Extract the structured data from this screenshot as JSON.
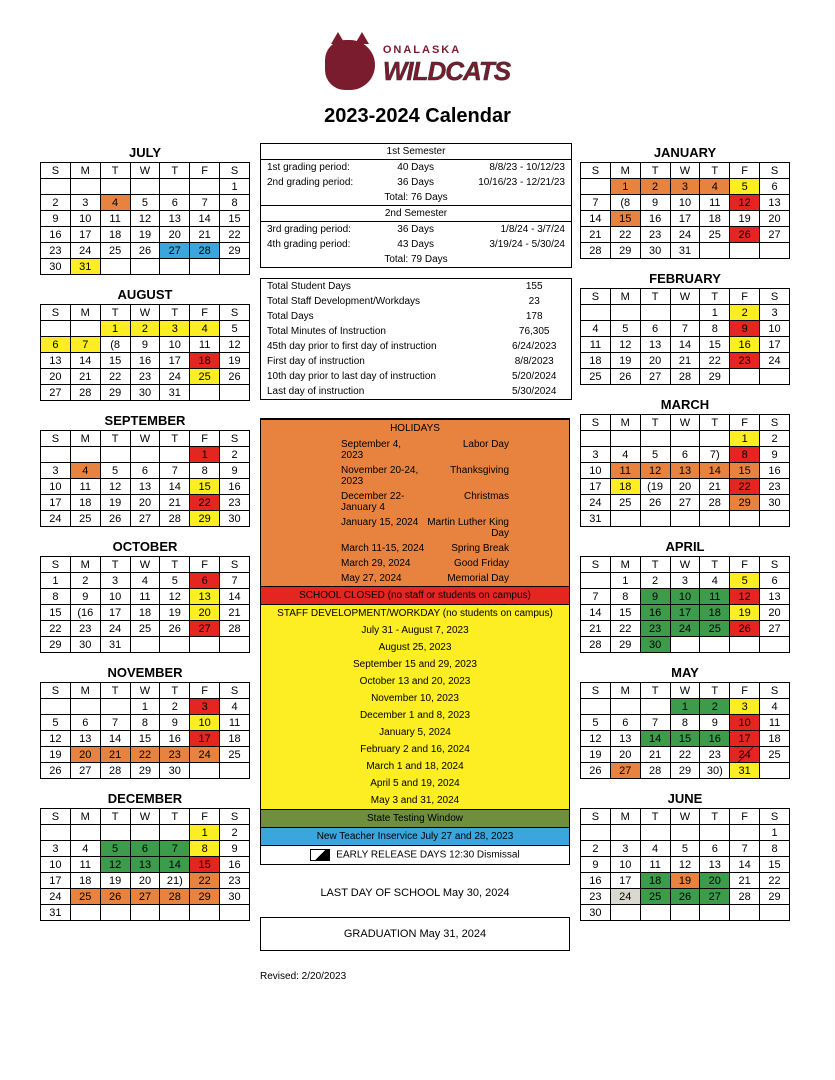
{
  "brand_top": "ONALASKA",
  "brand_main": "WILDCATS",
  "title": "2023-2024 Calendar",
  "dow": [
    "S",
    "M",
    "T",
    "W",
    "T",
    "F",
    "S"
  ],
  "colors": {
    "orange": "#e8833f",
    "red": "#e52620",
    "yellow": "#fcee23",
    "blue": "#3aa6dd",
    "green": "#3d9b4c",
    "olive": "#6f8f3e",
    "grey": "#d9d9cf"
  },
  "sem1": {
    "header": "1st Semester",
    "r1": [
      "1st grading period:",
      "40 Days",
      "8/8/23 - 10/12/23"
    ],
    "r2": [
      "2nd grading period:",
      "36 Days",
      "10/16/23 - 12/21/23"
    ],
    "total": "Total: 76 Days"
  },
  "sem2": {
    "header": "2nd Semester",
    "r1": [
      "3rd grading period:",
      "36 Days",
      "1/8/24 - 3/7/24"
    ],
    "r2": [
      "4th grading period:",
      "43 Days",
      "3/19/24 - 5/30/24"
    ],
    "total": "Total: 79 Days"
  },
  "stats": [
    [
      "Total Student Days",
      "155"
    ],
    [
      "Total Staff Development/Workdays",
      "23"
    ],
    [
      "Total Days",
      "178"
    ],
    [
      "Total Minutes of Instruction",
      "76,305"
    ],
    [
      "45th day prior to first day of instruction",
      "6/24/2023"
    ],
    [
      "First day of instruction",
      "8/8/2023"
    ],
    [
      "10th day prior to last day of instruction",
      "5/20/2024"
    ],
    [
      "Last day of instruction",
      "5/30/2024"
    ]
  ],
  "holidays_header": "HOLIDAYS",
  "holidays": [
    [
      "September 4, 2023",
      "Labor Day"
    ],
    [
      "November 20-24, 2023",
      "Thanksgiving"
    ],
    [
      "December 22-January 4",
      "Christmas"
    ],
    [
      "January 15, 2024",
      "Martin Luther King Day"
    ],
    [
      "March 11-15, 2024",
      "Spring Break"
    ],
    [
      "March 29, 2024",
      "Good Friday"
    ],
    [
      "May 27, 2024",
      "Memorial Day"
    ]
  ],
  "closed": "SCHOOL CLOSED (no staff or students on campus)",
  "dev_header": "STAFF DEVELOPMENT/WORKDAY (no students on campus)",
  "dev_dates": [
    "July 31 - August 7, 2023",
    "August 25, 2023",
    "September 15 and 29, 2023",
    "October 13 and 20, 2023",
    "November 10, 2023",
    "December 1 and 8, 2023",
    "January 5, 2024",
    "February 2 and 16, 2024",
    "March 1 and 18, 2024",
    "April 5 and 19, 2024",
    "May 3 and 31, 2024"
  ],
  "testing": "State Testing Window",
  "newteach": "New Teacher Inservice July 27 and 28, 2023",
  "early": "EARLY RELEASE DAYS 12:30  Dismissal",
  "lastday": "LAST DAY OF SCHOOL May 30, 2024",
  "grad": "GRADUATION  May 31, 2024",
  "revised": "Revised: 2/20/2023",
  "months": [
    {
      "name": "JULY",
      "start": 6,
      "days": 31,
      "hl": {
        "4": "orange",
        "27": "blue",
        "28": "blue",
        "31": "yellow"
      }
    },
    {
      "name": "AUGUST",
      "start": 2,
      "days": 31,
      "hl": {
        "1": "yellow",
        "2": "yellow",
        "3": "yellow",
        "4": "yellow",
        "6": "yellow",
        "7": "yellow",
        "18": "red",
        "25": "yellow"
      },
      "br": {
        "8": "(8"
      }
    },
    {
      "name": "SEPTEMBER",
      "start": 5,
      "days": 30,
      "hl": {
        "1": "red",
        "4": "orange",
        "15": "yellow",
        "22": "red",
        "29": "yellow"
      }
    },
    {
      "name": "OCTOBER",
      "start": 0,
      "days": 31,
      "hl": {
        "6": "red",
        "13": "yellow",
        "20": "yellow",
        "27": "red"
      },
      "br": {
        "16": "(16"
      }
    },
    {
      "name": "NOVEMBER",
      "start": 3,
      "days": 30,
      "hl": {
        "3": "red",
        "10": "yellow",
        "17": "red",
        "20": "orange",
        "21": "orange",
        "22": "orange",
        "23": "orange",
        "24": "orange"
      }
    },
    {
      "name": "DECEMBER",
      "start": 5,
      "days": 31,
      "hl": {
        "1": "yellow",
        "5": "green",
        "6": "green",
        "7": "green",
        "8": "yellow",
        "12": "green",
        "13": "green",
        "14": "green",
        "15": "red",
        "22": "orange",
        "25": "orange",
        "26": "orange",
        "27": "orange",
        "28": "orange",
        "29": "orange"
      },
      "br": {
        "21": "21)"
      }
    },
    {
      "name": "JANUARY",
      "start": 1,
      "days": 31,
      "hl": {
        "1": "orange",
        "2": "orange",
        "3": "orange",
        "4": "orange",
        "5": "yellow",
        "12": "red",
        "15": "orange",
        "26": "red"
      },
      "br": {
        "8": "(8"
      }
    },
    {
      "name": "FEBRUARY",
      "start": 4,
      "days": 29,
      "hl": {
        "2": "yellow",
        "9": "red",
        "16": "yellow",
        "23": "red"
      }
    },
    {
      "name": "MARCH",
      "start": 5,
      "days": 31,
      "hl": {
        "1": "yellow",
        "8": "red",
        "11": "orange",
        "12": "orange",
        "13": "orange",
        "14": "orange",
        "15": "orange",
        "18": "yellow",
        "22": "red",
        "29": "orange"
      },
      "br": {
        "7": "7)",
        "19": "(19"
      }
    },
    {
      "name": "APRIL",
      "start": 1,
      "days": 30,
      "hl": {
        "5": "yellow",
        "9": "green",
        "10": "green",
        "11": "green",
        "12": "red",
        "16": "green",
        "17": "green",
        "18": "green",
        "19": "yellow",
        "23": "green",
        "24": "green",
        "25": "green",
        "26": "red",
        "30": "green"
      }
    },
    {
      "name": "MAY",
      "start": 3,
      "days": 31,
      "hl": {
        "1": "green",
        "2": "green",
        "3": "yellow",
        "10": "red",
        "14": "green",
        "15": "green",
        "16": "green",
        "17": "red",
        "24": "red",
        "27": "orange",
        "31": "yellow"
      },
      "br": {
        "30": "30)"
      },
      "diag": {
        "24": true
      }
    },
    {
      "name": "JUNE",
      "start": 6,
      "days": 30,
      "hl": {
        "18": "green",
        "19": "orange",
        "20": "green",
        "24": "grey",
        "25": "green",
        "26": "green",
        "27": "green"
      }
    }
  ]
}
